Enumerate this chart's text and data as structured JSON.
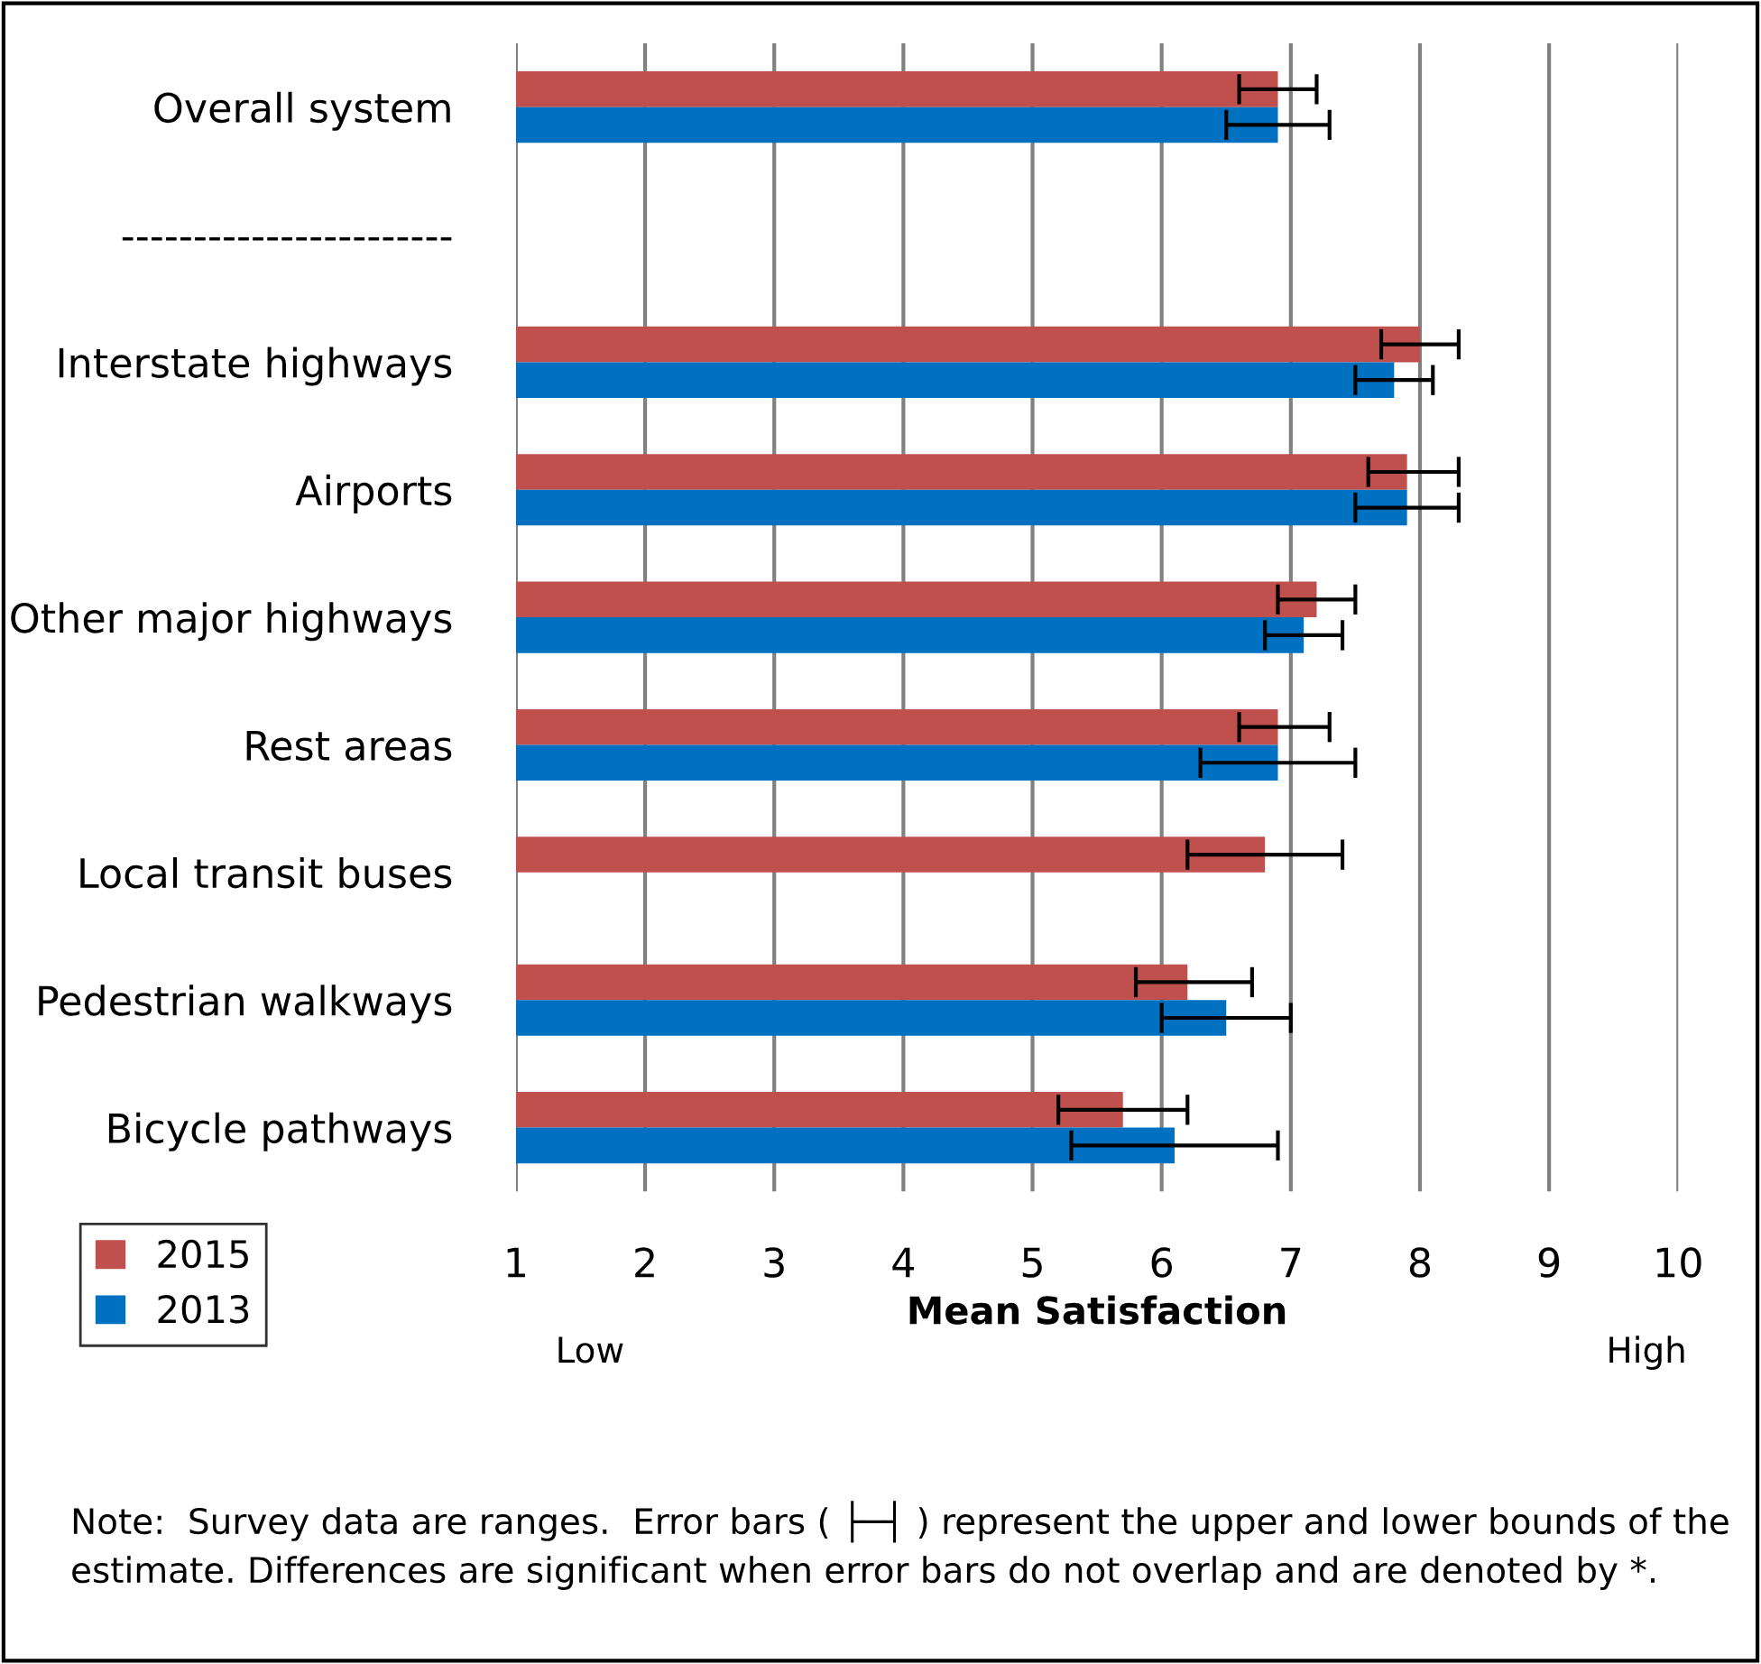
{
  "chart_data": {
    "type": "bar",
    "orientation": "horizontal",
    "categories": [
      "Overall system",
      "-----------------------",
      "Interstate highways",
      "Airports",
      "Other major highways",
      "Rest areas",
      "Local transit buses",
      "Pedestrian walkways",
      "Bicycle pathways"
    ],
    "series": [
      {
        "name": "2015",
        "color": "#c0504d",
        "values": [
          6.9,
          null,
          8.0,
          7.9,
          7.2,
          6.9,
          6.8,
          6.2,
          5.7
        ],
        "errors": [
          [
            6.6,
            7.2
          ],
          null,
          [
            7.7,
            8.3
          ],
          [
            7.6,
            8.3
          ],
          [
            6.9,
            7.5
          ],
          [
            6.6,
            7.3
          ],
          [
            6.2,
            7.4
          ],
          [
            5.8,
            6.7
          ],
          [
            5.2,
            6.2
          ]
        ]
      },
      {
        "name": "2013",
        "color": "#0070c0",
        "values": [
          6.9,
          null,
          7.8,
          7.9,
          7.1,
          6.9,
          null,
          6.5,
          6.1
        ],
        "errors": [
          [
            6.5,
            7.3
          ],
          null,
          [
            7.5,
            8.1
          ],
          [
            7.5,
            8.3
          ],
          [
            6.8,
            7.4
          ],
          [
            6.3,
            7.5
          ],
          null,
          [
            6.0,
            7.0
          ],
          [
            5.3,
            6.9
          ]
        ]
      }
    ],
    "xlim": [
      1,
      10
    ],
    "xticks": [
      1,
      2,
      3,
      4,
      5,
      6,
      7,
      8,
      9,
      10
    ],
    "xlabel": "Mean Satisfaction",
    "grid": "x",
    "legend": "bottom left",
    "annotations": [
      "Low",
      "High",
      "Note:  Survey data are ranges.  Error bars ( ├─┤ ) represent the upper and lower bounds of the estimate. Differences are significant when error bars do not overlap and are denoted by *."
    ]
  }
}
